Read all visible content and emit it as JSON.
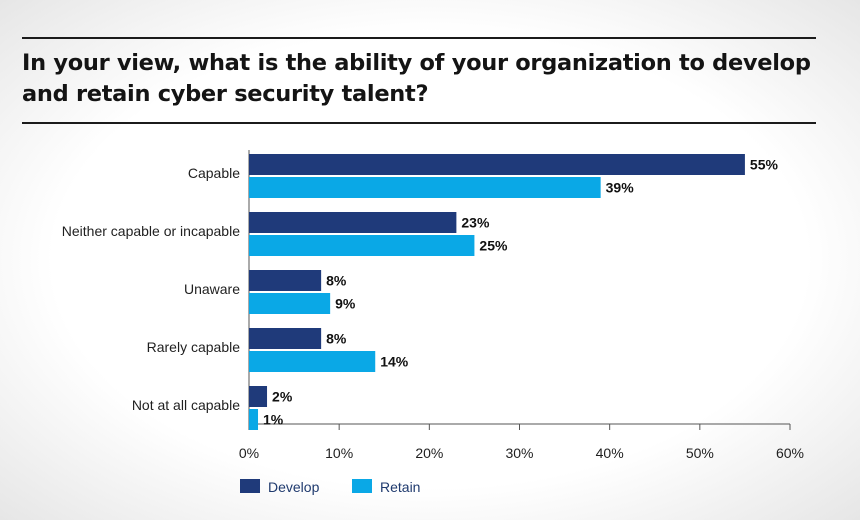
{
  "chart_data": {
    "type": "bar",
    "orientation": "horizontal",
    "title": "In your view, what is the ability of your organization to develop and retain cyber security talent?",
    "categories": [
      "Capable",
      "Neither capable or incapable",
      "Unaware",
      "Rarely capable",
      "Not at all capable"
    ],
    "series": [
      {
        "name": "Develop",
        "color": "#1f3a7a",
        "values": [
          55,
          23,
          8,
          8,
          2
        ],
        "labels": [
          "55%",
          "23%",
          "8%",
          "8%",
          "2%"
        ]
      },
      {
        "name": "Retain",
        "color": "#0aa8e6",
        "values": [
          39,
          25,
          9,
          14,
          1
        ],
        "labels": [
          "39%",
          "25%",
          "9%",
          "14%",
          "1%"
        ]
      }
    ],
    "xlim": [
      0,
      60
    ],
    "xticks": [
      "0%",
      "10%",
      "20%",
      "30%",
      "40%",
      "50%",
      "60%"
    ],
    "grid": false,
    "legend_position": "bottom-left"
  }
}
